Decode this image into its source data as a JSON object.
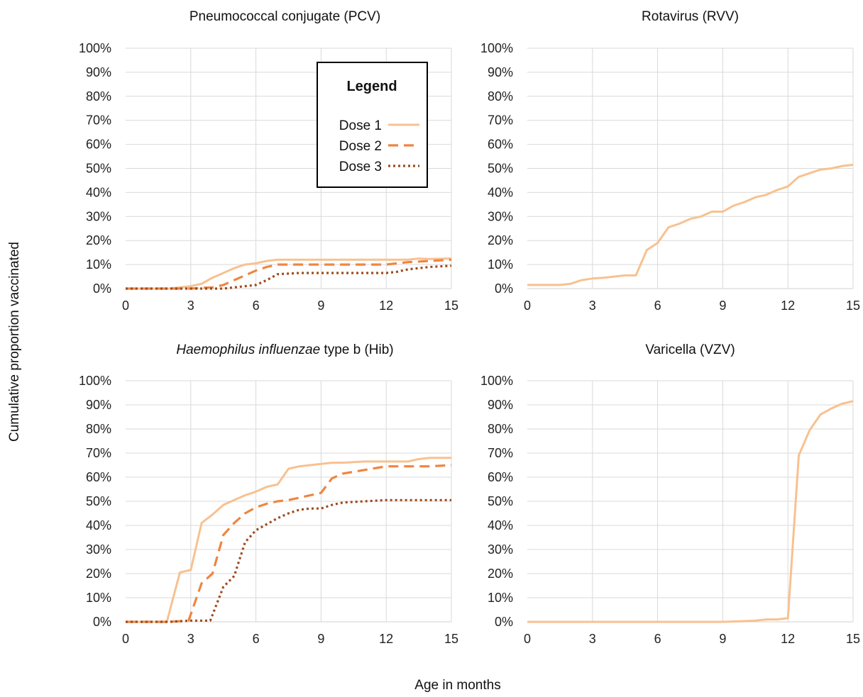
{
  "figure": {
    "ylabel": "Cumulative proportion vaccinated",
    "xlabel": "Age in months"
  },
  "legend": {
    "title": "Legend",
    "entries": [
      {
        "label": "Dose 1",
        "color": "#f8c190",
        "dash": "solid"
      },
      {
        "label": "Dose 2",
        "color": "#ef8540",
        "dash": "dashed"
      },
      {
        "label": "Dose 3",
        "color": "#9e4a1c",
        "dash": "dotted"
      }
    ]
  },
  "chart_data": [
    {
      "type": "line",
      "title": "Pneumococcal conjugate (PCV)",
      "title_italic": "",
      "title_rest": "",
      "xticks": [
        0,
        3,
        6,
        9,
        12,
        15
      ],
      "yticks": [
        "0%",
        "10%",
        "20%",
        "30%",
        "40%",
        "50%",
        "60%",
        "70%",
        "80%",
        "90%",
        "100%"
      ],
      "xlim": [
        0,
        15
      ],
      "ylim": [
        0,
        100
      ],
      "grid": "vertical",
      "legend_position": "top-right",
      "series": [
        {
          "name": "Dose 1",
          "x": [
            0,
            1,
            2,
            2.5,
            3,
            3.5,
            4,
            4.5,
            5,
            5.5,
            6,
            6.5,
            7,
            8,
            9,
            10,
            11,
            12,
            13,
            13.5,
            14,
            15
          ],
          "y": [
            0,
            0,
            0,
            0.5,
            1,
            2,
            4.5,
            6.5,
            8.5,
            10,
            10.5,
            11.5,
            12,
            12,
            12,
            12,
            12,
            12,
            12,
            12.5,
            12.3,
            12.5
          ]
        },
        {
          "name": "Dose 2",
          "x": [
            0,
            1,
            2,
            3,
            3.5,
            4,
            4.5,
            5,
            5.5,
            6,
            6.5,
            7,
            8,
            9,
            10,
            11,
            12,
            12.5,
            13,
            14,
            15
          ],
          "y": [
            0,
            0,
            0,
            0,
            0.3,
            0.5,
            1.5,
            3.5,
            5.5,
            7.5,
            9,
            10,
            10,
            10,
            10,
            10,
            10,
            10.5,
            11,
            11.5,
            12
          ]
        },
        {
          "name": "Dose 3",
          "x": [
            0,
            1,
            2,
            3,
            4,
            4.5,
            5,
            5.5,
            6,
            6.5,
            7,
            8,
            9,
            10,
            11,
            12,
            12.5,
            13,
            14,
            15
          ],
          "y": [
            0,
            0,
            0,
            0,
            0,
            0,
            0.5,
            1,
            1.5,
            3.5,
            6,
            6.5,
            6.5,
            6.5,
            6.5,
            6.5,
            7,
            8,
            9,
            9.5
          ]
        }
      ]
    },
    {
      "type": "line",
      "title": "Rotavirus (RVV)",
      "title_italic": "",
      "title_rest": "",
      "xticks": [
        0,
        3,
        6,
        9,
        12,
        15
      ],
      "yticks": [
        "0%",
        "10%",
        "20%",
        "30%",
        "40%",
        "50%",
        "60%",
        "70%",
        "80%",
        "90%",
        "100%"
      ],
      "xlim": [
        0,
        15
      ],
      "ylim": [
        0,
        100
      ],
      "grid": "vertical",
      "series": [
        {
          "name": "Dose 1",
          "x": [
            0,
            1,
            1.5,
            2,
            2.5,
            3,
            3.5,
            4,
            4.5,
            5,
            5.5,
            6,
            6.5,
            7,
            7.5,
            8,
            8.5,
            9,
            9.5,
            10,
            10.5,
            11,
            11.5,
            12,
            12.5,
            13,
            13.5,
            14,
            14.5,
            15
          ],
          "y": [
            1.5,
            1.5,
            1.5,
            2,
            3.5,
            4.2,
            4.5,
            5,
            5.5,
            5.5,
            16,
            19,
            25.5,
            27,
            29,
            30,
            32,
            32,
            34.5,
            36,
            38,
            39,
            41,
            42.5,
            46.5,
            48,
            49.5,
            50,
            51,
            51.5
          ]
        }
      ]
    },
    {
      "type": "line",
      "title": "",
      "title_italic": "Haemophilus influenzae",
      "title_rest": " type b (Hib)",
      "xticks": [
        0,
        3,
        6,
        9,
        12,
        15
      ],
      "yticks": [
        "0%",
        "10%",
        "20%",
        "30%",
        "40%",
        "50%",
        "60%",
        "70%",
        "80%",
        "90%",
        "100%"
      ],
      "xlim": [
        0,
        15
      ],
      "ylim": [
        0,
        100
      ],
      "grid": "vertical",
      "series": [
        {
          "name": "Dose 1",
          "x": [
            0,
            1,
            1.9,
            2.5,
            3,
            3.5,
            4,
            4.5,
            5,
            5.5,
            6,
            6.5,
            7,
            7.5,
            8,
            8.5,
            9,
            9.5,
            10,
            11,
            12,
            13,
            13.5,
            14,
            15
          ],
          "y": [
            0,
            0,
            0,
            20.5,
            21.5,
            41,
            44.5,
            48.5,
            50.5,
            52.5,
            54,
            56,
            57,
            63.5,
            64.5,
            65,
            65.5,
            66,
            66,
            66.5,
            66.5,
            66.5,
            67.5,
            68,
            68
          ]
        },
        {
          "name": "Dose 2",
          "x": [
            0,
            1,
            2,
            2.9,
            3.5,
            4,
            4.5,
            5,
            5.5,
            6,
            6.5,
            7,
            7.5,
            8,
            8.5,
            9,
            9.5,
            10,
            11,
            12,
            13,
            14,
            15
          ],
          "y": [
            0,
            0,
            0,
            0.5,
            16,
            20,
            36,
            41,
            45,
            47.5,
            49,
            50,
            50.5,
            51.5,
            52.5,
            53.5,
            59.5,
            61.5,
            63,
            64.5,
            64.5,
            64.5,
            65
          ]
        },
        {
          "name": "Dose 3",
          "x": [
            0,
            1,
            2,
            3,
            3.9,
            4.5,
            5,
            5.5,
            6,
            6.5,
            7,
            7.5,
            8,
            8.5,
            9,
            9.5,
            10,
            11,
            12,
            13,
            14,
            15
          ],
          "y": [
            0,
            0,
            0,
            0.5,
            0.5,
            14.5,
            19,
            33,
            38,
            40.5,
            43,
            45,
            46.5,
            47,
            47,
            48.5,
            49.5,
            50,
            50.5,
            50.5,
            50.5,
            50.5
          ]
        }
      ]
    },
    {
      "type": "line",
      "title": "Varicella (VZV)",
      "title_italic": "",
      "title_rest": "",
      "xticks": [
        0,
        3,
        6,
        9,
        12,
        15
      ],
      "yticks": [
        "0%",
        "10%",
        "20%",
        "30%",
        "40%",
        "50%",
        "60%",
        "70%",
        "80%",
        "90%",
        "100%"
      ],
      "xlim": [
        0,
        15
      ],
      "ylim": [
        0,
        100
      ],
      "grid": "vertical",
      "series": [
        {
          "name": "Dose 1",
          "x": [
            0,
            3,
            6,
            9,
            10,
            10.5,
            11,
            11.5,
            12,
            12.5,
            13,
            13.5,
            14,
            14.5,
            15
          ],
          "y": [
            0,
            0,
            0,
            0,
            0.3,
            0.5,
            1,
            1,
            1.5,
            69,
            79.5,
            86,
            88.5,
            90.5,
            91.5
          ]
        }
      ]
    }
  ]
}
